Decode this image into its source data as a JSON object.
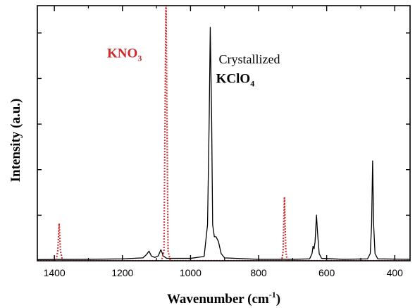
{
  "chart_data": {
    "type": "line",
    "xlabel": "Wavenumber (cm",
    "xlabel_superscript": "-1",
    "xlabel_close": ")",
    "ylabel": "Intensity (a.u.)",
    "xlim": [
      1450,
      355
    ],
    "x_reversed": true,
    "ylim": [
      0,
      1.06
    ],
    "x_ticks": [
      1400,
      1200,
      1000,
      800,
      600,
      400
    ],
    "x_tick_labels": [
      "1400",
      "1200",
      "1000",
      "800",
      "600",
      "400"
    ],
    "y_tick_labels_shown": false,
    "grid": false,
    "series": [
      {
        "name": "KClO4",
        "color": "#000000",
        "style": "solid",
        "points": [
          [
            1450,
            0.005
          ],
          [
            1300,
            0.006
          ],
          [
            1200,
            0.008
          ],
          [
            1140,
            0.012
          ],
          [
            1130,
            0.025
          ],
          [
            1122,
            0.04
          ],
          [
            1115,
            0.02
          ],
          [
            1105,
            0.014
          ],
          [
            1095,
            0.02
          ],
          [
            1087,
            0.046
          ],
          [
            1080,
            0.02
          ],
          [
            1070,
            0.01
          ],
          [
            1000,
            0.01
          ],
          [
            960,
            0.018
          ],
          [
            950,
            0.15
          ],
          [
            945,
            0.6
          ],
          [
            942,
            0.97
          ],
          [
            938,
            0.6
          ],
          [
            935,
            0.15
          ],
          [
            930,
            0.1
          ],
          [
            925,
            0.1
          ],
          [
            918,
            0.08
          ],
          [
            910,
            0.03
          ],
          [
            900,
            0.012
          ],
          [
            800,
            0.006
          ],
          [
            700,
            0.006
          ],
          [
            650,
            0.008
          ],
          [
            643,
            0.03
          ],
          [
            640,
            0.06
          ],
          [
            637,
            0.05
          ],
          [
            634,
            0.08
          ],
          [
            630,
            0.19
          ],
          [
            627,
            0.12
          ],
          [
            622,
            0.03
          ],
          [
            615,
            0.01
          ],
          [
            550,
            0.006
          ],
          [
            480,
            0.008
          ],
          [
            472,
            0.03
          ],
          [
            468,
            0.15
          ],
          [
            465,
            0.415
          ],
          [
            462,
            0.15
          ],
          [
            458,
            0.03
          ],
          [
            450,
            0.008
          ],
          [
            355,
            0.006
          ]
        ]
      },
      {
        "name": "KNO3",
        "color": "#cc2a2a",
        "style": "dotted",
        "points": [
          [
            1450,
            0.0
          ],
          [
            1395,
            0.0
          ],
          [
            1390,
            0.04
          ],
          [
            1386,
            0.155
          ],
          [
            1382,
            0.04
          ],
          [
            1376,
            0.0
          ],
          [
            1085,
            0.0
          ],
          [
            1078,
            0.04
          ],
          [
            1072,
            1.09
          ],
          [
            1066,
            0.04
          ],
          [
            1059,
            0.0
          ],
          [
            732,
            0.0
          ],
          [
            728,
            0.04
          ],
          [
            724,
            0.265
          ],
          [
            720,
            0.04
          ],
          [
            716,
            0.0
          ],
          [
            355,
            0.0
          ]
        ]
      }
    ],
    "annotations": [
      {
        "text": "KNO",
        "sub": "3",
        "color": "#cc2a2a",
        "bold": true,
        "x": 1245,
        "y": 0.845
      },
      {
        "text": "Crystallized",
        "color": "#000000",
        "bold": false,
        "x": 917,
        "y": 0.82
      },
      {
        "text": "KClO",
        "sub": "4",
        "color": "#000000",
        "bold": true,
        "x": 925,
        "y": 0.74
      }
    ]
  }
}
